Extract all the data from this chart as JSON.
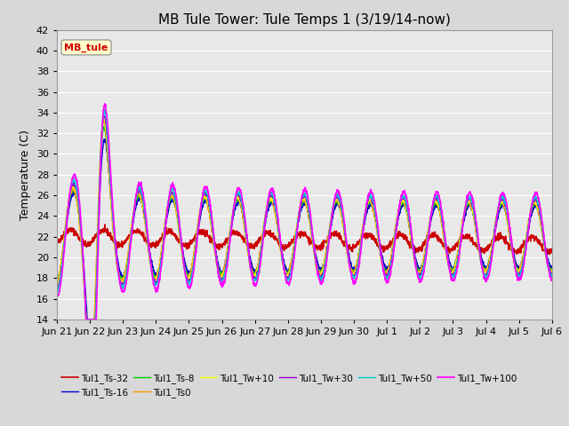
{
  "title": "MB Tule Tower: Tule Temps 1 (3/19/14-now)",
  "ylabel": "Temperature (C)",
  "ylim": [
    14,
    42
  ],
  "yticks": [
    14,
    16,
    18,
    20,
    22,
    24,
    26,
    28,
    30,
    32,
    34,
    36,
    38,
    40,
    42
  ],
  "xtick_labels": [
    "Jun 21",
    "Jun 22",
    "Jun 23",
    "Jun 24",
    "Jun 25",
    "Jun 26",
    "Jun 27",
    "Jun 28",
    "Jun 29",
    "Jun 30",
    "Jul 1",
    "Jul 2",
    "Jul 3",
    "Jul 4",
    "Jul 5",
    "Jul 6"
  ],
  "legend_box_label": "MB_tule",
  "legend_box_color": "#cc0000",
  "legend_box_bg": "#ffffcc",
  "lines": [
    {
      "label": "Tul1_Ts-32",
      "color": "#cc0000",
      "lw": 1.2
    },
    {
      "label": "Tul1_Ts-16",
      "color": "#0000cc",
      "lw": 1.0
    },
    {
      "label": "Tul1_Ts-8",
      "color": "#00cc00",
      "lw": 1.0
    },
    {
      "label": "Tul1_Ts0",
      "color": "#ff9900",
      "lw": 1.0
    },
    {
      "label": "Tul1_Tw+10",
      "color": "#ffff00",
      "lw": 1.0
    },
    {
      "label": "Tul1_Tw+30",
      "color": "#9900cc",
      "lw": 1.0
    },
    {
      "label": "Tul1_Tw+50",
      "color": "#00cccc",
      "lw": 1.0
    },
    {
      "label": "Tul1_Tw+100",
      "color": "#ff00ff",
      "lw": 1.2
    }
  ],
  "background_color": "#d8d8d8",
  "plot_bg_color": "#e8e8e8",
  "grid_color": "#ffffff",
  "title_fontsize": 11,
  "label_fontsize": 9,
  "tick_fontsize": 8
}
